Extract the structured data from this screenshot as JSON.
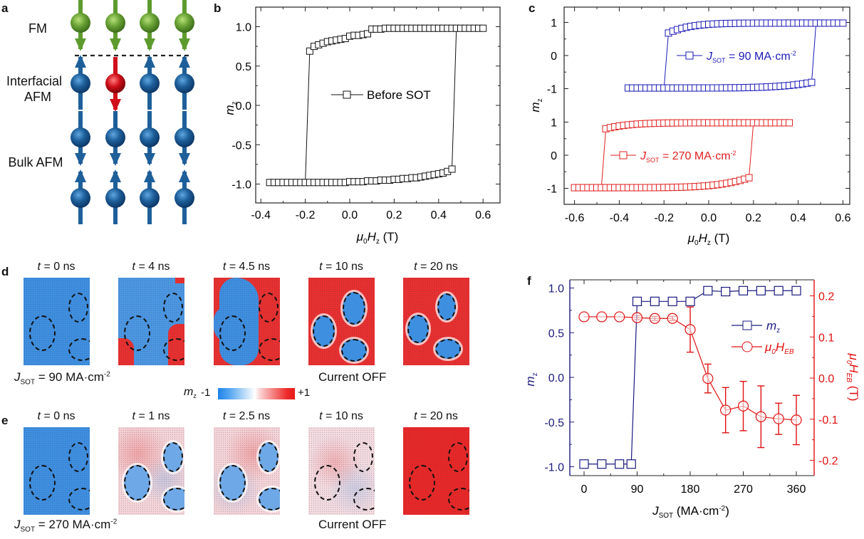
{
  "panels": {
    "a": {
      "label": "a",
      "layers": [
        "FM",
        "Interfacial",
        "AFM",
        "Bulk AFM"
      ],
      "colors": {
        "fm": "#5e9b2f",
        "afm": "#1e5f9a",
        "flipped": "#d0101a"
      }
    },
    "b": {
      "label": "b"
    },
    "c": {
      "label": "c"
    },
    "d": {
      "label": "d",
      "titles": [
        "t",
        "t",
        "t",
        "t",
        "t"
      ],
      "times": [
        "= 0 ns",
        "= 4 ns",
        "= 4.5 ns",
        "= 10 ns",
        "= 20 ns"
      ],
      "j_label": "J",
      "j_sub": "SOT",
      "j_value": " = 90 MA·cm",
      "j_exp": "-2",
      "current_off": "Current OFF",
      "colorbar": {
        "label": "m",
        "sub": "z",
        "min": "-1",
        "max": "+1"
      }
    },
    "e": {
      "label": "e",
      "times": [
        "= 0 ns",
        "= 1 ns",
        "= 2.5 ns",
        "= 10 ns",
        "= 20 ns"
      ],
      "j_label": "J",
      "j_sub": "SOT",
      "j_value": " = 270 MA·cm",
      "j_exp": "-2",
      "current_off": "Current OFF"
    },
    "f": {
      "label": "f"
    }
  },
  "chart_data": [
    {
      "id": "b",
      "type": "scatter",
      "title": "",
      "xlabel": "μ0Hz (T)",
      "ylabel": "mz",
      "xlim": [
        -0.45,
        0.65
      ],
      "ylim": [
        -1.25,
        1.25
      ],
      "xticks": [
        "-0.4",
        "-0.2",
        "0.0",
        "0.2",
        "0.4",
        "0.6"
      ],
      "yticks": [
        "-1.0",
        "-0.5",
        "0.0",
        "0.5",
        "1.0"
      ],
      "legend": {
        "entries": [
          "Before SOT"
        ],
        "placement": "center"
      },
      "series": [
        {
          "name": "Before SOT",
          "color": "#000000",
          "marker": "square",
          "upper_branch": {
            "x": [
              -0.18,
              -0.16,
              -0.14,
              -0.12,
              -0.1,
              -0.08,
              -0.06,
              -0.04,
              -0.02,
              0.0,
              0.02,
              0.04,
              0.06,
              0.08,
              0.1,
              0.12,
              0.14,
              0.16,
              0.18,
              0.2,
              0.22,
              0.24,
              0.26,
              0.28,
              0.3,
              0.32,
              0.34,
              0.36,
              0.38,
              0.4,
              0.42,
              0.44,
              0.46,
              0.48,
              0.5,
              0.52,
              0.54,
              0.56,
              0.58,
              0.6
            ],
            "y": [
              0.69,
              0.75,
              0.77,
              0.79,
              0.81,
              0.82,
              0.83,
              0.84,
              0.85,
              0.88,
              0.89,
              0.89,
              0.9,
              0.91,
              0.97,
              0.97,
              0.97,
              0.98,
              0.98,
              0.98,
              0.98,
              0.98,
              0.98,
              0.98,
              0.98,
              0.98,
              0.98,
              0.98,
              0.98,
              0.98,
              0.98,
              0.98,
              0.98,
              0.98,
              0.98,
              0.98,
              0.98,
              0.98,
              0.98,
              0.98
            ]
          },
          "lower_branch": {
            "x": [
              -0.36,
              -0.34,
              -0.32,
              -0.3,
              -0.28,
              -0.26,
              -0.24,
              -0.22,
              -0.2,
              -0.18,
              -0.16,
              -0.14,
              -0.12,
              -0.1,
              -0.08,
              -0.06,
              -0.04,
              -0.02,
              0.0,
              0.02,
              0.04,
              0.06,
              0.08,
              0.1,
              0.12,
              0.14,
              0.16,
              0.18,
              0.2,
              0.22,
              0.24,
              0.26,
              0.28,
              0.3,
              0.32,
              0.34,
              0.36,
              0.38,
              0.4,
              0.42,
              0.44,
              0.46
            ],
            "y": [
              -0.98,
              -0.98,
              -0.98,
              -0.98,
              -0.98,
              -0.98,
              -0.98,
              -0.98,
              -0.98,
              -0.98,
              -0.98,
              -0.98,
              -0.98,
              -0.98,
              -0.98,
              -0.98,
              -0.98,
              -0.98,
              -0.97,
              -0.97,
              -0.97,
              -0.97,
              -0.96,
              -0.96,
              -0.96,
              -0.95,
              -0.95,
              -0.95,
              -0.94,
              -0.94,
              -0.93,
              -0.93,
              -0.92,
              -0.92,
              -0.91,
              -0.9,
              -0.89,
              -0.88,
              -0.87,
              -0.86,
              -0.84,
              -0.81
            ]
          },
          "switch_down_x": -0.2,
          "switch_up_x": 0.48
        }
      ]
    },
    {
      "id": "c",
      "type": "scatter",
      "xlabel": "μ0Hz (T)",
      "ylabel": "mz",
      "xlim": [
        -0.65,
        0.65
      ],
      "xticks": [
        "-0.6",
        "-0.4",
        "-0.2",
        "0.0",
        "0.2",
        "0.4",
        "0.6"
      ],
      "yticks_upper": [
        "-1",
        "0",
        "1"
      ],
      "yticks_lower": [
        "-1",
        "0",
        "1"
      ],
      "series": [
        {
          "name": "JSOT = 90 MA·cm-2",
          "legend_j": "J",
          "legend_sub": "SOT",
          "legend_val": " = 90 MA·cm",
          "legend_exp": "-2",
          "color": "#1a1ab8",
          "offset": "upper",
          "x_start": -0.36,
          "x_end": 0.6,
          "switch_down_x": -0.2,
          "switch_up_x": 0.48,
          "upper_first_x": -0.18,
          "upper_first_y": 0.68,
          "lower_last_x": 0.46,
          "lower_last_y": -0.81
        },
        {
          "name": "JSOT = 270 MA·cm-2",
          "legend_j": "J",
          "legend_sub": "SOT",
          "legend_val": " = 270 MA·cm",
          "legend_exp": "-2",
          "color": "#e02020",
          "offset": "lower",
          "x_start": -0.6,
          "x_end": 0.36,
          "switch_down_x": -0.48,
          "switch_up_x": 0.2,
          "upper_first_x": -0.46,
          "upper_first_y": 0.8,
          "lower_last_x": 0.18,
          "lower_last_y": -0.68
        }
      ]
    },
    {
      "id": "f",
      "type": "line",
      "xlabel": "JSOT (MA·cm-2)",
      "ylabel_left": "mz",
      "ylabel_right": "μ0HEB (T)",
      "xlim": [
        -15,
        375
      ],
      "ylim_left": [
        -1.1,
        1.1
      ],
      "ylim_right": [
        -0.24,
        0.24
      ],
      "xticks": [
        "0",
        "90",
        "180",
        "270",
        "360"
      ],
      "yticks_left": [
        "-1.0",
        "-0.5",
        "0.0",
        "0.5",
        "1.0"
      ],
      "yticks_right": [
        "-0.2",
        "-0.1",
        "0.0",
        "0.1",
        "0.2"
      ],
      "legend": {
        "entries": [
          "mz",
          "μ0HEB"
        ],
        "placement": "top-right"
      },
      "x": [
        0,
        30,
        60,
        80,
        90,
        120,
        150,
        180,
        210,
        240,
        270,
        300,
        330,
        360
      ],
      "series": [
        {
          "name": "mz",
          "axis": "left",
          "color": "#1a1a80",
          "marker": "square",
          "x": [
            0,
            30,
            60,
            80,
            90,
            120,
            150,
            180,
            210,
            240,
            270,
            300,
            330,
            360
          ],
          "y": [
            -0.97,
            -0.97,
            -0.97,
            -0.97,
            0.85,
            0.85,
            0.85,
            0.85,
            0.97,
            0.96,
            0.97,
            0.97,
            0.97,
            0.97
          ]
        },
        {
          "name": "μ0HEB",
          "axis": "right",
          "color": "#e01010",
          "marker": "circle",
          "x": [
            0,
            30,
            60,
            90,
            120,
            150,
            180,
            210,
            240,
            270,
            300,
            330,
            360
          ],
          "y": [
            0.149,
            0.149,
            0.149,
            0.147,
            0.145,
            0.145,
            0.118,
            -0.001,
            -0.078,
            -0.068,
            -0.094,
            -0.099,
            -0.102
          ],
          "err": [
            0,
            0,
            0,
            0.005,
            0.005,
            0.005,
            0.055,
            0.035,
            0.055,
            0.06,
            0.075,
            0.038,
            0.06
          ]
        }
      ]
    }
  ]
}
